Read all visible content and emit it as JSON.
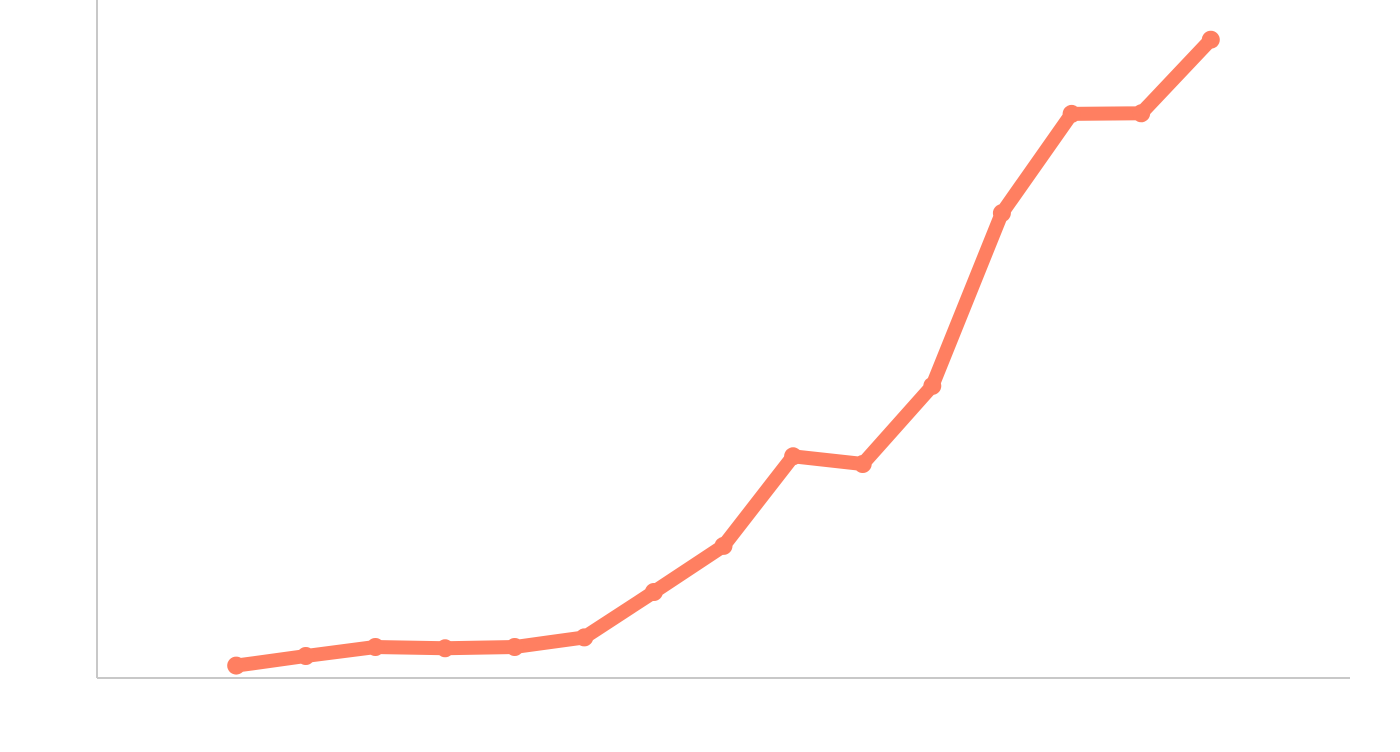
{
  "chart_data": {
    "type": "line",
    "title": "",
    "xlabel": "",
    "ylabel": "",
    "grid": false,
    "x": [
      1,
      2,
      3,
      4,
      5,
      6,
      7,
      8,
      9,
      10,
      11,
      12,
      13,
      14,
      15
    ],
    "xlim": [
      -1,
      17
    ],
    "ylim": [
      0,
      100
    ],
    "series": [
      {
        "color": "#ff7f61",
        "values": [
          1.0,
          2.5,
          3.9,
          3.7,
          3.9,
          5.4,
          12.5,
          19.7,
          33.7,
          32.5,
          44.7,
          71.7,
          87.2,
          87.3,
          98.8
        ]
      }
    ],
    "axis_color": "#c8c8c8"
  }
}
